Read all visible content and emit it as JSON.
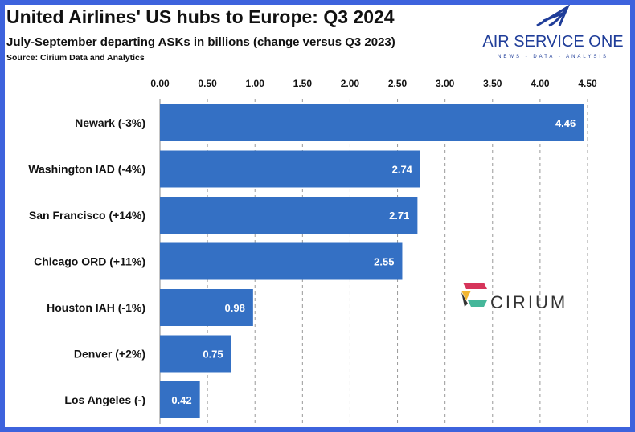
{
  "title": "United Airlines' US hubs to Europe: Q3 2024",
  "subtitle": "July-September departing ASKs in billions (change versus Q3 2023)",
  "source": "Source: Cirium Data and Analytics",
  "logos": {
    "brand": "AIR SERVICE ONE",
    "tagline": "NEWS - DATA - ANALYSIS",
    "partner": "CIRIUM"
  },
  "colors": {
    "bar": "#3470c4",
    "frame": "#3d63dd",
    "logo": "#1f3d99"
  },
  "chart_data": {
    "type": "bar",
    "orientation": "horizontal",
    "xaxis_position": "top",
    "categories": [
      "Newark (-3%)",
      "Washington IAD (-4%)",
      "San Francisco (+14%)",
      "Chicago ORD (+11%)",
      "Houston IAH (-1%)",
      "Denver (+2%)",
      "Los Angeles (-)"
    ],
    "values": [
      4.46,
      2.74,
      2.71,
      2.55,
      0.98,
      0.75,
      0.42
    ],
    "data_labels": [
      "4.46",
      "2.74",
      "2.71",
      "2.55",
      "0.98",
      "0.75",
      "0.42"
    ],
    "xlim": [
      0,
      4.5
    ],
    "ticks": [
      "0.00",
      "0.50",
      "1.00",
      "1.50",
      "2.00",
      "2.50",
      "3.00",
      "3.50",
      "4.00",
      "4.50"
    ],
    "grid": true
  }
}
